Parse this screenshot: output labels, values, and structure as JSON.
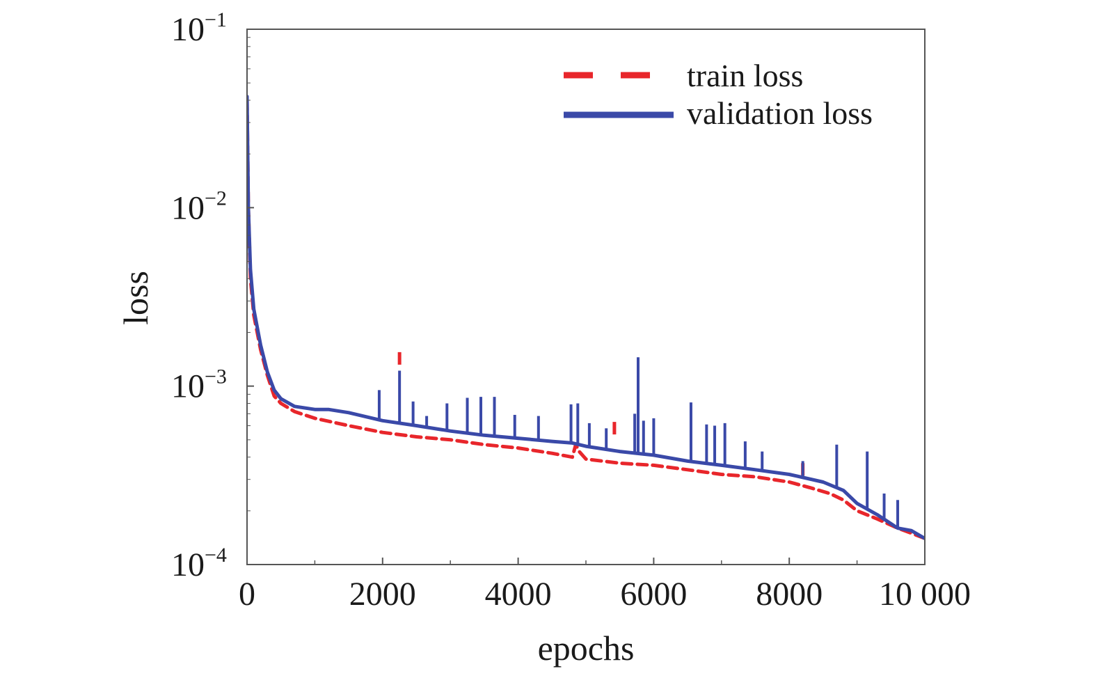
{
  "chart_data": {
    "type": "line",
    "xlabel": "epochs",
    "ylabel": "loss",
    "xlim": [
      0,
      10000
    ],
    "ylim": [
      0.0001,
      0.1
    ],
    "yscale": "log",
    "grid": false,
    "legend_position": "top-right",
    "x_ticks": [
      {
        "value": 0,
        "label": "0"
      },
      {
        "value": 2000,
        "label": "2000"
      },
      {
        "value": 4000,
        "label": "4000"
      },
      {
        "value": 6000,
        "label": "6000"
      },
      {
        "value": 8000,
        "label": "8000"
      },
      {
        "value": 10000,
        "label": "10 000"
      }
    ],
    "y_ticks": [
      {
        "value": 0.1,
        "base": "10",
        "exp": "−1"
      },
      {
        "value": 0.01,
        "base": "10",
        "exp": "−2"
      },
      {
        "value": 0.001,
        "base": "10",
        "exp": "−3"
      },
      {
        "value": 0.0001,
        "base": "10",
        "exp": "−4"
      }
    ],
    "series": [
      {
        "name": "train loss",
        "color": "#e8262b",
        "style": "dashed",
        "x": [
          0,
          20,
          50,
          100,
          200,
          300,
          400,
          500,
          700,
          1000,
          1500,
          2000,
          2500,
          3000,
          3500,
          4000,
          4500,
          4800,
          4850,
          4900,
          5000,
          5500,
          6000,
          6500,
          7000,
          7500,
          8000,
          8300,
          8600,
          8800,
          9000,
          9300,
          9600,
          9800,
          10000
        ],
        "y": [
          0.04,
          0.01,
          0.004,
          0.0025,
          0.0016,
          0.00115,
          0.00088,
          0.0008,
          0.00072,
          0.00066,
          0.0006,
          0.00055,
          0.00052,
          0.0005,
          0.00047,
          0.00045,
          0.00042,
          0.0004,
          0.00047,
          0.00043,
          0.00039,
          0.00037,
          0.00036,
          0.00034,
          0.00032,
          0.00031,
          0.00029,
          0.00027,
          0.00025,
          0.00023,
          0.0002,
          0.00018,
          0.00016,
          0.00015,
          0.00014
        ],
        "spikes": [
          {
            "x": 2250,
            "y": 0.00155
          },
          {
            "x": 5420,
            "y": 0.00063
          },
          {
            "x": 8200,
            "y": 0.00037
          }
        ]
      },
      {
        "name": "validation loss",
        "color": "#3a49a8",
        "style": "solid",
        "x": [
          0,
          20,
          50,
          100,
          200,
          300,
          400,
          500,
          700,
          1000,
          1200,
          1500,
          2000,
          2500,
          3000,
          3500,
          4000,
          4500,
          4800,
          5000,
          5500,
          6000,
          6500,
          7000,
          7500,
          8000,
          8500,
          8800,
          9000,
          9300,
          9600,
          9800,
          10000
        ],
        "y": [
          0.042,
          0.01,
          0.0045,
          0.0027,
          0.0017,
          0.0012,
          0.00095,
          0.00085,
          0.00077,
          0.00074,
          0.00074,
          0.00071,
          0.00064,
          0.0006,
          0.00056,
          0.00053,
          0.00051,
          0.00049,
          0.00048,
          0.00046,
          0.00043,
          0.00041,
          0.00038,
          0.00036,
          0.00034,
          0.00032,
          0.00029,
          0.00026,
          0.00022,
          0.00019,
          0.00016,
          0.000155,
          0.00014
        ],
        "spikes": [
          {
            "x": 1950,
            "y": 0.00095
          },
          {
            "x": 2250,
            "y": 0.00122
          },
          {
            "x": 2450,
            "y": 0.00082
          },
          {
            "x": 2650,
            "y": 0.00068
          },
          {
            "x": 2950,
            "y": 0.0008
          },
          {
            "x": 3250,
            "y": 0.00086
          },
          {
            "x": 3450,
            "y": 0.00087
          },
          {
            "x": 3650,
            "y": 0.00087
          },
          {
            "x": 3950,
            "y": 0.00069
          },
          {
            "x": 4300,
            "y": 0.00068
          },
          {
            "x": 4780,
            "y": 0.00079
          },
          {
            "x": 4880,
            "y": 0.0008
          },
          {
            "x": 5050,
            "y": 0.00062
          },
          {
            "x": 5300,
            "y": 0.00058
          },
          {
            "x": 5720,
            "y": 0.0007
          },
          {
            "x": 5770,
            "y": 0.00145
          },
          {
            "x": 5850,
            "y": 0.00064
          },
          {
            "x": 6000,
            "y": 0.00066
          },
          {
            "x": 6550,
            "y": 0.00081
          },
          {
            "x": 6780,
            "y": 0.00061
          },
          {
            "x": 6900,
            "y": 0.0006
          },
          {
            "x": 7050,
            "y": 0.00062
          },
          {
            "x": 7350,
            "y": 0.00049
          },
          {
            "x": 7600,
            "y": 0.00043
          },
          {
            "x": 8200,
            "y": 0.00038
          },
          {
            "x": 8700,
            "y": 0.00047
          },
          {
            "x": 9150,
            "y": 0.00043
          },
          {
            "x": 9400,
            "y": 0.00025
          },
          {
            "x": 9600,
            "y": 0.00023
          }
        ]
      }
    ]
  }
}
